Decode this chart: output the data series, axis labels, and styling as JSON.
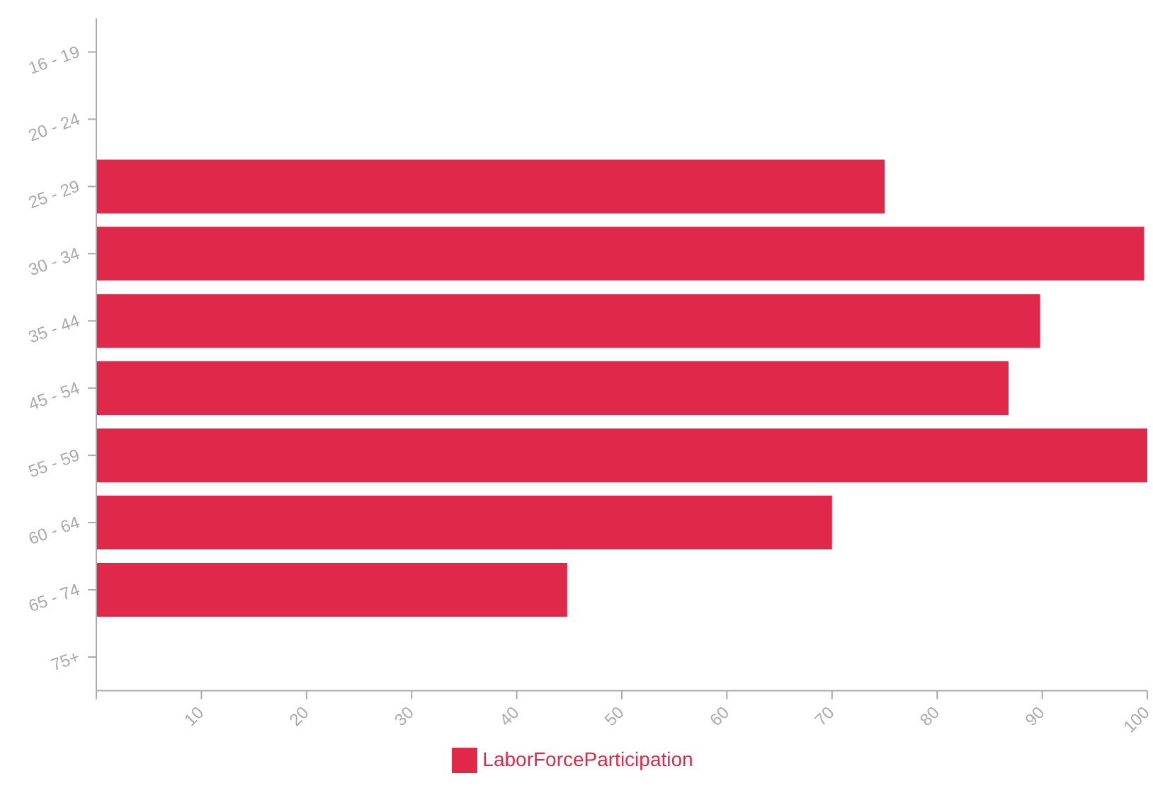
{
  "chart_data": {
    "type": "bar",
    "orientation": "horizontal",
    "categories": [
      "16 - 19",
      "20 - 24",
      "25 - 29",
      "30 - 34",
      "35 - 44",
      "45 - 54",
      "55 - 59",
      "60 - 64",
      "65 - 74",
      "75+"
    ],
    "series": [
      {
        "name": "LaborForceParticipation",
        "color": "#e0284a",
        "values": [
          null,
          null,
          75,
          99.7,
          89.8,
          86.8,
          100,
          70,
          44.8,
          null
        ]
      }
    ],
    "xlim": [
      0,
      100
    ],
    "xticks": [
      {
        "value": 0,
        "label": null
      },
      10,
      20,
      30,
      40,
      50,
      60,
      70,
      80,
      90,
      100
    ],
    "grid": false,
    "legend": "bottom"
  }
}
